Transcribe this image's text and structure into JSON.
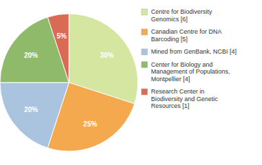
{
  "chart_data": {
    "type": "pie",
    "categories": [
      "Centre for Biodiversity\nGenomics [6]",
      "Canadian Centre for DNA\nBarcoding [5]",
      "Mined from GenBank, NCBI [4]",
      "Center for Biology and\nManagement of Populations,\nMontpellier [4]",
      "Research Center in\nBiodiversity and Genetic\nResources [1]"
    ],
    "values": [
      30,
      25,
      20,
      20,
      5
    ],
    "value_labels": [
      "30%",
      "25%",
      "20%",
      "20%",
      "5%"
    ],
    "colors": [
      "#d4e6a0",
      "#f5a94e",
      "#aac4e0",
      "#8fba6a",
      "#d96b54"
    ],
    "data_labels": true,
    "legend": "right"
  }
}
